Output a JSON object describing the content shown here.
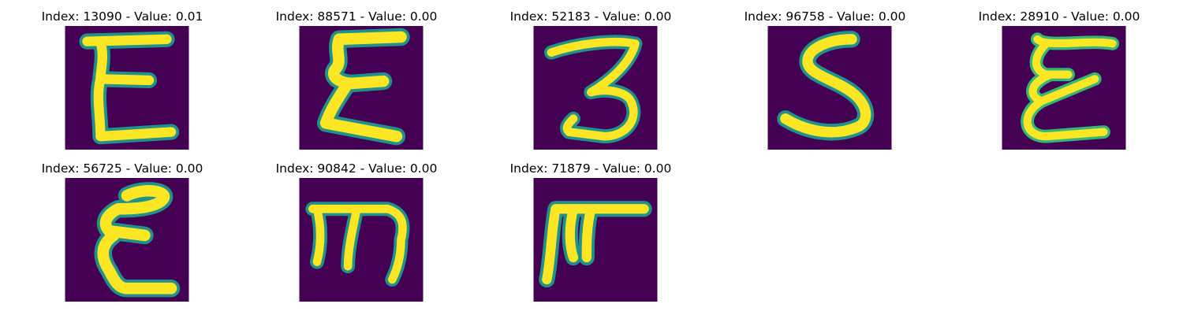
{
  "figure": {
    "colors": {
      "background": "#440154",
      "stroke_core": "#fde725",
      "stroke_mid": "#b5de2b",
      "stroke_edge": "#35b779",
      "stroke_rim": "#21918c",
      "stroke_outer": "#31688e"
    },
    "panels": [
      {
        "title": "Index: 13090 - Value: 0.01",
        "glyph": "E",
        "icon": "handwritten-e-icon"
      },
      {
        "title": "Index: 88571 - Value: 0.00",
        "glyph": "E",
        "icon": "handwritten-sigma-e-icon"
      },
      {
        "title": "Index: 52183 - Value: 0.00",
        "glyph": "3",
        "icon": "handwritten-three-icon"
      },
      {
        "title": "Index: 96758 - Value: 0.00",
        "glyph": "S",
        "icon": "handwritten-s-icon"
      },
      {
        "title": "Index: 28910 - Value: 0.00",
        "glyph": "E",
        "icon": "handwritten-script-e-icon"
      },
      {
        "title": "Index: 56725 - Value: 0.00",
        "glyph": "E",
        "icon": "handwritten-e-icon"
      },
      {
        "title": "Index: 90842 - Value: 0.00",
        "glyph": "m",
        "icon": "handwritten-m-icon"
      },
      {
        "title": "Index: 71879 - Value: 0.00",
        "glyph": "F",
        "icon": "handwritten-f-icon"
      }
    ]
  }
}
